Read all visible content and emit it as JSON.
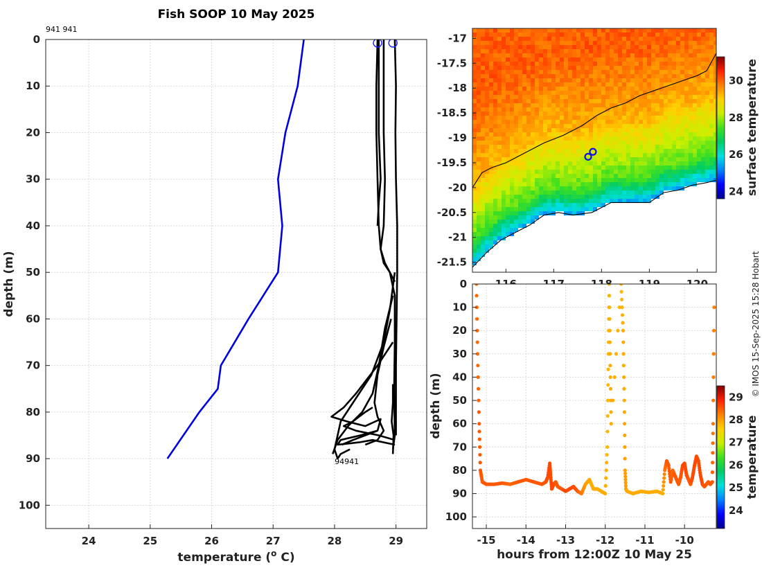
{
  "title": "Fish SOOP 10 May 2025",
  "credit": "© IMOS 15-Sep-2025 15:28 Hobart",
  "chart_data": [
    {
      "type": "line",
      "name": "temperature-depth-profile",
      "xlabel": "temperature (",
      "xlabel_sup": "o",
      "xlabel_end": " C)",
      "ylabel": "depth (m)",
      "xlim": [
        23.3,
        29.5
      ],
      "ylim": [
        105,
        0
      ],
      "xticks": [
        "24",
        "25",
        "26",
        "27",
        "28",
        "29"
      ],
      "yticks": [
        "0",
        "10",
        "20",
        "30",
        "40",
        "50",
        "60",
        "70",
        "80",
        "90",
        "100"
      ],
      "corner_label": "941 941",
      "end_label": "94941",
      "climatology_color": "#0000e0",
      "profile_color": "#000000",
      "climatology": {
        "x": [
          27.5,
          27.4,
          27.2,
          27.08,
          27.15,
          27.08,
          26.6,
          26.15,
          26.1,
          25.8,
          25.28
        ],
        "y": [
          0,
          10,
          20,
          30,
          40,
          50,
          60,
          70,
          75,
          80,
          90
        ]
      },
      "surface_markers": [
        28.7,
        28.95
      ],
      "profiles": [
        {
          "x": [
            28.7,
            28.68,
            28.68,
            28.7,
            28.72,
            28.75,
            28.82,
            28.9,
            28.98,
            28.98,
            28.97,
            28.98,
            28.96,
            28.95
          ],
          "y": [
            0,
            10,
            20,
            30,
            40,
            45,
            48,
            50,
            55,
            65,
            75,
            85,
            87,
            88
          ]
        },
        {
          "x": [
            28.8,
            28.8,
            28.8,
            28.82,
            28.8,
            28.78,
            28.75,
            28.8,
            28.9,
            28.98
          ],
          "y": [
            0,
            10,
            20,
            30,
            40,
            42,
            45,
            48,
            50,
            52
          ]
        },
        {
          "x": [
            28.98,
            29.0,
            28.99,
            29.0,
            29.02,
            29.02,
            29.0,
            29.0
          ],
          "y": [
            0,
            10,
            20,
            30,
            40,
            50,
            70,
            85
          ]
        },
        {
          "x": [
            28.72,
            28.72,
            28.72,
            28.75,
            28.72,
            28.7
          ],
          "y": [
            0,
            10,
            20,
            30,
            35,
            40
          ]
        },
        {
          "x": [
            28.98,
            28.9,
            28.8,
            28.6,
            28.3,
            28.1,
            28.05,
            28.0,
            28.05,
            28.1,
            28.25
          ],
          "y": [
            50,
            58,
            65,
            72,
            78,
            82,
            85,
            88,
            90,
            89,
            88
          ]
        },
        {
          "x": [
            28.95,
            28.82,
            28.72,
            28.62,
            28.45,
            28.22,
            28.05,
            27.97
          ],
          "y": [
            55,
            62,
            70,
            76,
            80,
            83,
            86,
            89
          ]
        },
        {
          "x": [
            28.92,
            28.8,
            28.7,
            28.65,
            28.7,
            28.8,
            28.7,
            28.5
          ],
          "y": [
            60,
            66,
            72,
            78,
            81,
            84,
            86,
            87
          ]
        },
        {
          "x": [
            28.95,
            28.7,
            28.35,
            28.15,
            27.95,
            28.2,
            28.5,
            28.75,
            28.7,
            28.3,
            28.12
          ],
          "y": [
            65,
            70,
            76,
            79,
            81,
            82,
            83,
            81.5,
            84,
            86,
            87
          ]
        },
        {
          "x": [
            28.62,
            28.5,
            28.3,
            28.15,
            28.35,
            28.72,
            28.98
          ],
          "y": [
            79,
            80,
            82,
            83,
            84,
            85,
            86
          ]
        },
        {
          "x": [
            28.7,
            28.42,
            28.1,
            28.05,
            28.4,
            28.62,
            28.98
          ],
          "y": [
            84,
            85,
            86,
            87,
            86.5,
            86,
            87
          ]
        },
        {
          "x": [
            28.95,
            28.95,
            28.93,
            28.96,
            28.95
          ],
          "y": [
            74,
            78,
            82,
            85,
            89
          ]
        }
      ]
    },
    {
      "type": "heatmap",
      "name": "surface-temperature-map",
      "xlim": [
        115.3,
        120.4
      ],
      "ylim": [
        -21.7,
        -16.8
      ],
      "xticks": [
        "116",
        "117",
        "118",
        "119",
        "120"
      ],
      "yticks": [
        "-17",
        "-17.5",
        "-18",
        "-18.5",
        "-19",
        "-19.5",
        "-20",
        "-20.5",
        "-21",
        "-21.5"
      ],
      "colorbar_label": "surface temperature",
      "colorbar_range": [
        23.6,
        31.3
      ],
      "colorbar_ticks": [
        "24",
        "26",
        "28",
        "30"
      ],
      "colormap": [
        "#00008f",
        "#0000ff",
        "#0080ff",
        "#00e0e0",
        "#00cc66",
        "#40e020",
        "#c8f000",
        "#ffd000",
        "#ff8000",
        "#ff2000",
        "#800000"
      ],
      "stations": [
        {
          "lon": 117.72,
          "lat": -19.38
        },
        {
          "lon": 117.82,
          "lat": -19.28
        }
      ],
      "contour_offshore": {
        "lon": [
          115.3,
          115.5,
          115.7,
          116.0,
          116.4,
          116.8,
          117.2,
          117.6,
          117.9,
          118.2,
          118.5,
          118.8,
          119.1,
          119.4,
          119.7,
          120.0,
          120.2,
          120.4
        ],
        "lat": [
          -20.0,
          -19.7,
          -19.6,
          -19.5,
          -19.3,
          -19.1,
          -18.95,
          -18.75,
          -18.55,
          -18.4,
          -18.3,
          -18.15,
          -18.05,
          -17.95,
          -17.85,
          -17.75,
          -17.65,
          -17.3
        ]
      },
      "coastline": {
        "lon": [
          115.3,
          115.6,
          115.9,
          116.2,
          116.5,
          116.8,
          117.1,
          117.4,
          117.8,
          118.2,
          118.6,
          119.0,
          119.3,
          119.6,
          119.9,
          120.2,
          120.4
        ],
        "lat": [
          -21.6,
          -21.3,
          -21.05,
          -20.9,
          -20.75,
          -20.55,
          -20.5,
          -20.55,
          -20.5,
          -20.3,
          -20.3,
          -20.3,
          -20.1,
          -20.05,
          -19.95,
          -19.9,
          -19.85
        ]
      }
    },
    {
      "type": "scatter",
      "name": "depth-time-section",
      "xlabel": "hours from 12:00Z 10 May 25",
      "ylabel": "depth (m)",
      "xlim": [
        -15.35,
        -9.2
      ],
      "ylim": [
        105,
        0
      ],
      "xticks": [
        "-15",
        "-14",
        "-13",
        "-12",
        "-11",
        "-10"
      ],
      "yticks": [
        "0",
        "10",
        "20",
        "30",
        "40",
        "50",
        "60",
        "70",
        "80",
        "90",
        "100"
      ],
      "colorbar_label": "temperature",
      "colorbar_range": [
        23.2,
        29.5
      ],
      "colorbar_ticks": [
        "24",
        "25",
        "26",
        "27",
        "28",
        "29"
      ],
      "track": {
        "t": [
          -15.25,
          -15.22,
          -15.18,
          -15.15,
          -15.1,
          -15.0,
          -14.8,
          -14.6,
          -14.4,
          -14.2,
          -14.0,
          -13.8,
          -13.6,
          -13.5,
          -13.45,
          -13.4,
          -13.38,
          -13.35,
          -13.3,
          -13.25,
          -13.2,
          -13.1,
          -13.0,
          -12.9,
          -12.8,
          -12.7,
          -12.6,
          -12.5,
          -12.4,
          -12.3,
          -12.2,
          -12.1,
          -12.0,
          -11.95,
          -11.92,
          -11.9,
          -11.88,
          -11.85,
          -11.6,
          -11.55,
          -11.52,
          -11.5,
          -11.48,
          -11.45,
          -11.3,
          -11.1,
          -10.9,
          -10.7,
          -10.55,
          -10.5,
          -10.45,
          -10.4,
          -10.35,
          -10.3,
          -10.25,
          -10.2,
          -10.15,
          -10.1,
          -10.05,
          -10.0,
          -9.95,
          -9.9,
          -9.85,
          -9.8,
          -9.75,
          -9.7,
          -9.65,
          -9.6,
          -9.55,
          -9.5,
          -9.45,
          -9.4,
          -9.35,
          -9.3,
          -9.28,
          -9.25
        ],
        "depth": [
          0,
          30,
          60,
          80,
          85,
          86,
          86,
          85.5,
          86,
          85,
          84,
          85,
          86,
          85,
          83,
          77,
          82,
          88,
          86,
          85,
          87,
          88,
          89,
          88,
          87,
          89,
          90,
          86,
          84,
          88,
          88,
          89,
          90,
          70,
          30,
          0,
          30,
          60,
          0,
          20,
          50,
          80,
          88,
          89,
          90,
          89,
          89.5,
          89,
          90,
          80,
          76,
          78,
          85,
          80,
          82,
          84,
          86,
          83,
          78,
          77,
          82,
          84,
          86,
          83,
          78,
          74,
          76,
          82,
          86,
          87,
          86,
          85,
          86,
          85,
          60,
          0
        ],
        "temp": [
          28.4,
          28.4,
          28.5,
          28.5,
          28.5,
          28.5,
          28.5,
          28.5,
          28.4,
          28.5,
          28.5,
          28.5,
          28.5,
          28.5,
          28.6,
          28.6,
          28.6,
          28.6,
          28.6,
          28.5,
          28.5,
          28.5,
          28.6,
          28.6,
          28.6,
          28.5,
          28.3,
          28.0,
          27.9,
          27.9,
          27.9,
          27.9,
          27.9,
          27.8,
          27.8,
          27.8,
          27.9,
          27.9,
          27.8,
          27.9,
          27.9,
          28.0,
          28.0,
          27.9,
          27.9,
          27.9,
          27.9,
          27.9,
          27.9,
          28.3,
          28.5,
          28.5,
          28.5,
          28.4,
          28.5,
          28.5,
          28.5,
          28.5,
          28.6,
          28.6,
          28.6,
          28.5,
          28.5,
          28.6,
          28.6,
          28.6,
          28.6,
          28.6,
          28.6,
          28.5,
          28.5,
          28.5,
          28.5,
          28.5,
          28.3,
          28.2
        ]
      }
    }
  ]
}
